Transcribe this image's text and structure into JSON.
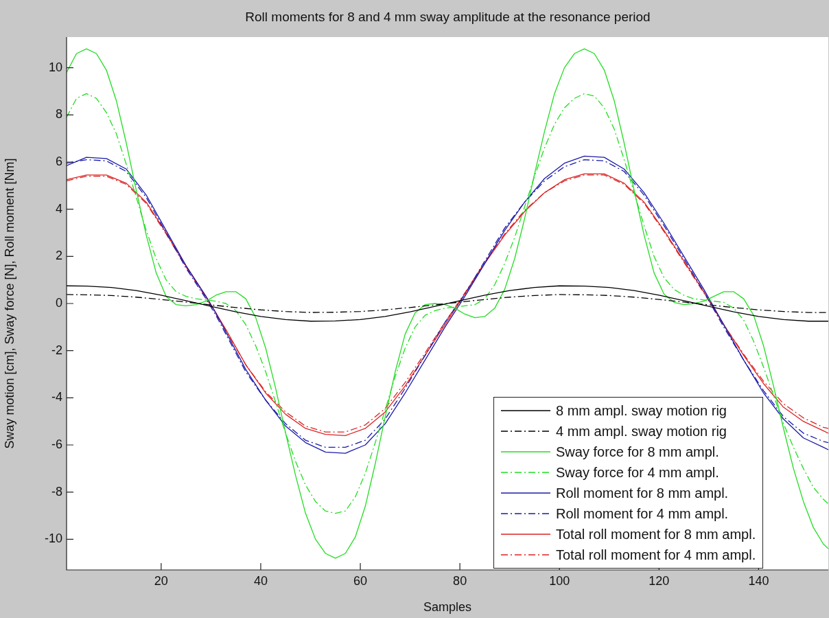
{
  "chart_data": {
    "type": "line",
    "title": "Roll moments for 8 and 4 mm sway amplitude at the resonance period",
    "xlabel": "Samples",
    "ylabel": "Sway motion [cm], Sway force [N], Roll moment [Nm]",
    "xlim": [
      1,
      154
    ],
    "ylim": [
      -11.3,
      11.3
    ],
    "xticks": [
      20,
      40,
      60,
      80,
      100,
      120,
      140
    ],
    "yticks": [
      -10,
      -8,
      -6,
      -4,
      -2,
      0,
      2,
      4,
      6,
      8,
      10
    ],
    "grid": false,
    "legend": "bottom right",
    "marker": "none",
    "series": [
      {
        "name": "8 mm ampl. sway motion rig",
        "color": "#000000",
        "line_style": "solid",
        "x": [
          1,
          5,
          10,
          15,
          20,
          25,
          30,
          35,
          40,
          45,
          50,
          55,
          60,
          65,
          70,
          75,
          80,
          85,
          90,
          95,
          100,
          105,
          110,
          115,
          120,
          125,
          130,
          135,
          140,
          145,
          150,
          154
        ],
        "values": [
          0.75,
          0.74,
          0.68,
          0.55,
          0.35,
          0.12,
          -0.12,
          -0.35,
          -0.55,
          -0.68,
          -0.75,
          -0.74,
          -0.68,
          -0.55,
          -0.35,
          -0.12,
          0.12,
          0.35,
          0.55,
          0.68,
          0.75,
          0.74,
          0.68,
          0.55,
          0.35,
          0.12,
          -0.12,
          -0.35,
          -0.55,
          -0.68,
          -0.75,
          -0.75
        ]
      },
      {
        "name": "4 mm ampl. sway motion rig",
        "color": "#000000",
        "line_style": "dashed",
        "x": [
          1,
          5,
          10,
          15,
          20,
          25,
          30,
          35,
          40,
          45,
          50,
          55,
          60,
          65,
          70,
          75,
          80,
          85,
          90,
          95,
          100,
          105,
          110,
          115,
          120,
          125,
          130,
          135,
          140,
          145,
          150,
          154
        ],
        "values": [
          0.38,
          0.37,
          0.34,
          0.27,
          0.17,
          0.06,
          -0.06,
          -0.17,
          -0.27,
          -0.34,
          -0.38,
          -0.37,
          -0.34,
          -0.27,
          -0.17,
          -0.06,
          0.06,
          0.17,
          0.27,
          0.34,
          0.38,
          0.37,
          0.34,
          0.27,
          0.17,
          0.06,
          -0.06,
          -0.17,
          -0.27,
          -0.34,
          -0.38,
          -0.38
        ]
      },
      {
        "name": "Sway force for 8 mm ampl.",
        "color": "#22dd22",
        "line_style": "solid",
        "x": [
          1,
          3,
          5,
          7,
          9,
          11,
          13,
          15,
          17,
          19,
          21,
          23,
          25,
          27,
          29,
          31,
          33,
          35,
          37,
          39,
          41,
          43,
          45,
          47,
          49,
          51,
          53,
          55,
          57,
          59,
          61,
          63,
          65,
          67,
          69,
          71,
          73,
          75,
          77,
          79,
          81,
          83,
          85,
          87,
          89,
          91,
          93,
          95,
          97,
          99,
          101,
          103,
          105,
          107,
          109,
          111,
          113,
          115,
          117,
          119,
          121,
          123,
          125,
          127,
          129,
          131,
          133,
          135,
          137,
          139,
          141,
          143,
          145,
          147,
          149,
          151,
          153,
          154
        ],
        "values": [
          9.8,
          10.6,
          10.8,
          10.6,
          9.9,
          8.6,
          6.8,
          4.8,
          2.9,
          1.3,
          0.3,
          -0.05,
          -0.1,
          -0.05,
          0.1,
          0.35,
          0.5,
          0.5,
          0.2,
          -0.6,
          -1.9,
          -3.6,
          -5.5,
          -7.3,
          -8.9,
          -10.0,
          -10.6,
          -10.8,
          -10.6,
          -9.9,
          -8.6,
          -6.8,
          -4.8,
          -2.9,
          -1.3,
          -0.4,
          -0.05,
          0,
          -0.05,
          -0.2,
          -0.45,
          -0.6,
          -0.55,
          -0.2,
          0.6,
          1.9,
          3.6,
          5.5,
          7.3,
          8.9,
          10.0,
          10.6,
          10.8,
          10.6,
          9.9,
          8.6,
          6.8,
          4.8,
          2.9,
          1.3,
          0.4,
          0.05,
          -0.05,
          0,
          0.1,
          0.3,
          0.5,
          0.5,
          0.2,
          -0.5,
          -1.8,
          -3.5,
          -5.3,
          -7.0,
          -8.4,
          -9.5,
          -10.2,
          -10.4
        ]
      },
      {
        "name": "Sway force for 4 mm ampl.",
        "color": "#22dd22",
        "line_style": "dashed",
        "x": [
          1,
          3,
          5,
          7,
          9,
          11,
          13,
          15,
          17,
          19,
          21,
          23,
          25,
          27,
          29,
          31,
          33,
          35,
          37,
          39,
          41,
          43,
          45,
          47,
          49,
          51,
          53,
          55,
          57,
          59,
          61,
          63,
          65,
          67,
          69,
          71,
          73,
          75,
          77,
          79,
          81,
          83,
          85,
          87,
          89,
          91,
          93,
          95,
          97,
          99,
          101,
          103,
          105,
          107,
          109,
          111,
          113,
          115,
          117,
          119,
          121,
          123,
          125,
          127,
          129,
          131,
          133,
          135,
          137,
          139,
          141,
          143,
          145,
          147,
          149,
          151,
          153,
          154
        ],
        "values": [
          7.9,
          8.7,
          8.9,
          8.7,
          8.1,
          7.2,
          5.9,
          4.5,
          3.1,
          1.9,
          1.0,
          0.5,
          0.3,
          0.2,
          0.15,
          0.1,
          0,
          -0.3,
          -0.9,
          -1.8,
          -2.9,
          -4.2,
          -5.5,
          -6.7,
          -7.7,
          -8.4,
          -8.8,
          -8.9,
          -8.8,
          -8.2,
          -7.2,
          -5.9,
          -4.5,
          -3.1,
          -1.9,
          -1.0,
          -0.5,
          -0.3,
          -0.2,
          -0.15,
          -0.1,
          -0.05,
          0.2,
          0.8,
          1.7,
          2.8,
          4.1,
          5.4,
          6.6,
          7.6,
          8.3,
          8.7,
          8.9,
          8.8,
          8.3,
          7.4,
          6.1,
          4.7,
          3.3,
          2.0,
          1.1,
          0.6,
          0.35,
          0.2,
          0.15,
          0.1,
          0.05,
          -0.2,
          -0.7,
          -1.6,
          -2.7,
          -3.9,
          -5.1,
          -6.1,
          -7.0,
          -7.8,
          -8.3,
          -8.5
        ]
      },
      {
        "name": "Roll moment for 8 mm ampl.",
        "color": "#1a1aaa",
        "line_style": "solid",
        "x": [
          1,
          5,
          9,
          13,
          17,
          21,
          25,
          29,
          31,
          33,
          37,
          41,
          45,
          49,
          53,
          57,
          61,
          65,
          69,
          73,
          77,
          81,
          85,
          89,
          93,
          97,
          101,
          105,
          109,
          113,
          117,
          121,
          125,
          129,
          133,
          137,
          141,
          145,
          149,
          153,
          154
        ],
        "values": [
          5.85,
          6.2,
          6.15,
          5.7,
          4.6,
          3.1,
          1.6,
          0.3,
          -0.4,
          -1.2,
          -2.8,
          -4.1,
          -5.2,
          -5.9,
          -6.3,
          -6.35,
          -6.0,
          -5.1,
          -3.8,
          -2.4,
          -1.0,
          0.3,
          1.7,
          3.1,
          4.3,
          5.3,
          5.95,
          6.25,
          6.2,
          5.7,
          4.7,
          3.4,
          2.0,
          0.6,
          -0.9,
          -2.4,
          -3.8,
          -4.9,
          -5.7,
          -6.1,
          -6.2
        ]
      },
      {
        "name": "Roll moment for 4 mm ampl.",
        "color": "#1a1aaa",
        "line_style": "dashed",
        "x": [
          1,
          5,
          9,
          13,
          17,
          21,
          25,
          29,
          31,
          33,
          37,
          41,
          45,
          49,
          53,
          57,
          61,
          65,
          69,
          73,
          77,
          81,
          85,
          89,
          93,
          97,
          101,
          105,
          109,
          113,
          117,
          121,
          125,
          129,
          133,
          137,
          141,
          145,
          149,
          153,
          154
        ],
        "values": [
          5.95,
          6.1,
          6.05,
          5.6,
          4.5,
          3.0,
          1.5,
          0.2,
          -0.5,
          -1.3,
          -2.9,
          -4.1,
          -5.1,
          -5.8,
          -6.1,
          -6.1,
          -5.8,
          -4.9,
          -3.6,
          -2.2,
          -0.8,
          0.4,
          1.8,
          3.2,
          4.3,
          5.2,
          5.8,
          6.1,
          6.05,
          5.6,
          4.6,
          3.3,
          1.9,
          0.5,
          -1.0,
          -2.4,
          -3.7,
          -4.8,
          -5.5,
          -5.85,
          -5.9
        ]
      },
      {
        "name": "Total roll moment for 8 mm ampl.",
        "color": "#dd2222",
        "line_style": "solid",
        "x": [
          1,
          5,
          9,
          13,
          17,
          21,
          25,
          29,
          31,
          33,
          37,
          41,
          45,
          49,
          53,
          57,
          61,
          65,
          69,
          73,
          77,
          81,
          85,
          89,
          93,
          97,
          101,
          105,
          109,
          113,
          117,
          121,
          125,
          129,
          133,
          137,
          141,
          145,
          149,
          153,
          154
        ],
        "values": [
          5.25,
          5.45,
          5.45,
          5.1,
          4.3,
          3.0,
          1.6,
          0.3,
          -0.4,
          -1.1,
          -2.6,
          -3.8,
          -4.7,
          -5.3,
          -5.55,
          -5.6,
          -5.3,
          -4.6,
          -3.5,
          -2.2,
          -0.9,
          0.4,
          1.7,
          2.9,
          3.9,
          4.7,
          5.25,
          5.5,
          5.5,
          5.1,
          4.3,
          3.1,
          1.8,
          0.5,
          -0.9,
          -2.2,
          -3.4,
          -4.4,
          -5.0,
          -5.4,
          -5.5
        ]
      },
      {
        "name": "Total roll moment for 4 mm ampl.",
        "color": "#dd2222",
        "line_style": "dashed",
        "x": [
          1,
          5,
          9,
          13,
          17,
          21,
          25,
          29,
          31,
          33,
          37,
          41,
          45,
          49,
          53,
          57,
          61,
          65,
          69,
          73,
          77,
          81,
          85,
          89,
          93,
          97,
          101,
          105,
          109,
          113,
          117,
          121,
          125,
          129,
          133,
          137,
          141,
          145,
          149,
          153,
          154
        ],
        "values": [
          5.2,
          5.4,
          5.4,
          5.05,
          4.25,
          2.95,
          1.55,
          0.25,
          -0.45,
          -1.15,
          -2.6,
          -3.75,
          -4.6,
          -5.2,
          -5.45,
          -5.45,
          -5.15,
          -4.45,
          -3.35,
          -2.1,
          -0.8,
          0.45,
          1.75,
          2.95,
          3.95,
          4.7,
          5.2,
          5.45,
          5.45,
          5.05,
          4.25,
          3.05,
          1.75,
          0.45,
          -0.9,
          -2.15,
          -3.3,
          -4.25,
          -4.85,
          -5.25,
          -5.3
        ]
      }
    ]
  }
}
